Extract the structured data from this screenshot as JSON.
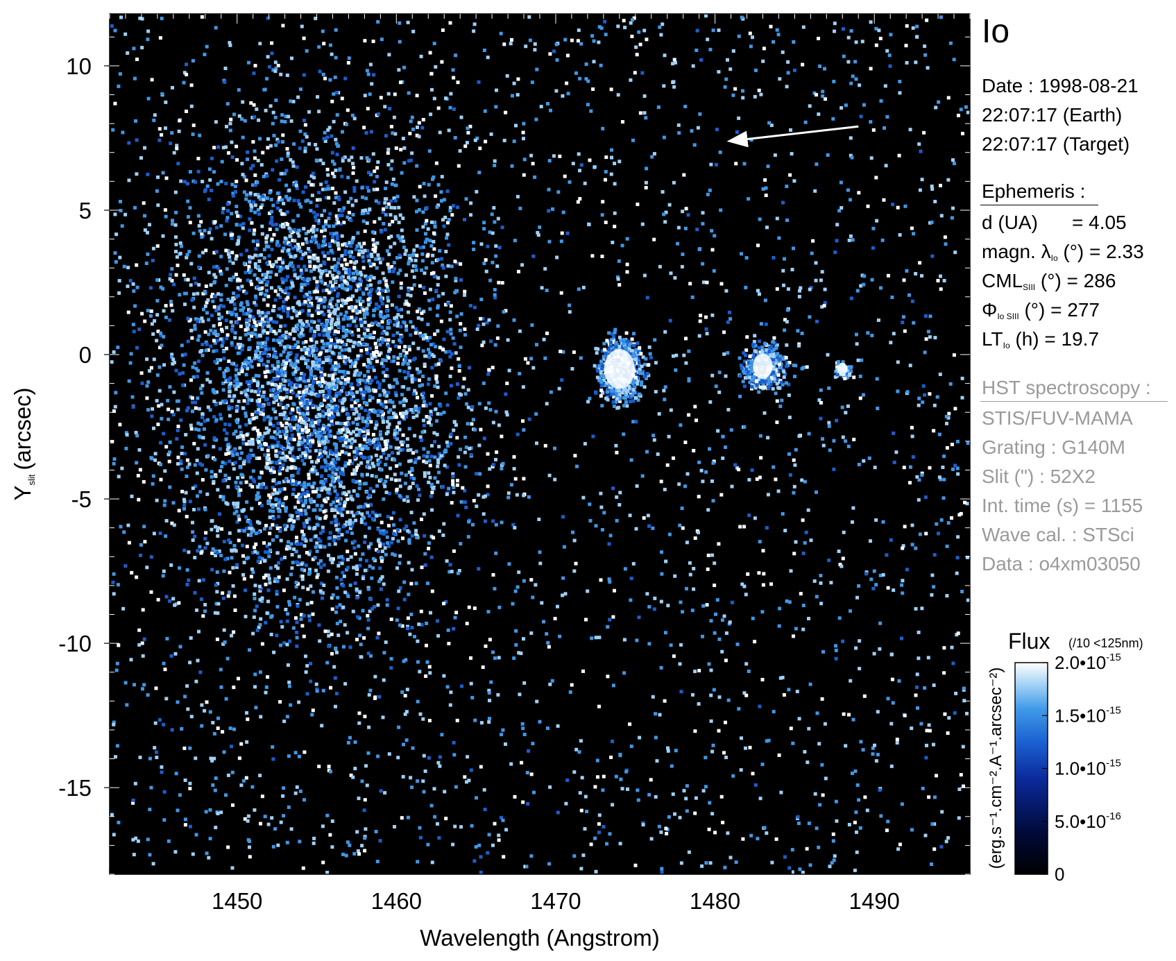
{
  "chart_data": {
    "type": "heatmap",
    "title": "Io",
    "xlabel": "Wavelength (Angstrom)",
    "ylabel_main": "Y",
    "ylabel_sub": "slit",
    "ylabel_unit": "(arcsec)",
    "xlim": [
      1442,
      1496
    ],
    "ylim": [
      -18,
      11.8
    ],
    "x_ticks": [
      1450,
      1460,
      1470,
      1480,
      1490
    ],
    "y_ticks": [
      10,
      5,
      0,
      -5,
      -10,
      -15
    ],
    "background_color": "#000000",
    "colormap": [
      "#000000",
      "#000a2e",
      "#0b2a8c",
      "#1a5fd0",
      "#3f97e6",
      "#9fd0f5",
      "#ffffff"
    ],
    "emission_features": [
      {
        "x": 1455,
        "y": -1,
        "kind": "broad diffuse emission"
      },
      {
        "x": 1474,
        "y": -0.5,
        "kind": "bright compact emission"
      },
      {
        "x": 1483,
        "y": -0.4,
        "kind": "compact emission"
      },
      {
        "x": 1488,
        "y": -0.5,
        "kind": "weak compact emission"
      }
    ],
    "arrow": {
      "from": [
        1489,
        7.9
      ],
      "to": [
        1481,
        7.4
      ]
    },
    "colorbar": {
      "label": "Flux",
      "label_note": "(/10 <125nm)",
      "unit": "(erg.s⁻¹.cm⁻².A⁻¹.arcsec⁻²)",
      "range": [
        0,
        2e-15
      ],
      "ticks": [
        {
          "value": 2e-15,
          "mantissa": "2.0•10",
          "exponent": "-15"
        },
        {
          "value": 1.5e-15,
          "mantissa": "1.5•10",
          "exponent": "-15"
        },
        {
          "value": 1e-15,
          "mantissa": "1.0•10",
          "exponent": "-15"
        },
        {
          "value": 5e-16,
          "mantissa": "5.0•10",
          "exponent": "-16"
        },
        {
          "value": 0,
          "mantissa": "0",
          "exponent": ""
        }
      ]
    }
  },
  "info": {
    "target": "Io",
    "date_line": "Date : 1998-08-21",
    "earth_time": "22:07:17 (Earth)",
    "target_time": "22:07:17 (Target)",
    "ephemeris_header": "Ephemeris :",
    "d_label": "d (UA)",
    "d_value": "= 4.05",
    "magn_label": "magn. λ",
    "magn_sub": "Io",
    "magn_value": "(°)  = 2.33",
    "cml_label": "CML",
    "cml_sub": "SIII",
    "cml_value": "(°) = 286",
    "phi_label": "Φ",
    "phi_sub": "Io SIII",
    "phi_value": "(°) = 277",
    "lt_label": "LT",
    "lt_sub": "Io",
    "lt_value": "(h) = 19.7",
    "hst_header": "HST spectroscopy :",
    "instrument": "STIS/FUV-MAMA",
    "grating": "Grating : G140M",
    "slit": "Slit (\") : 52X2",
    "int_time": "Int. time (s) = 1155",
    "wave_cal": "Wave cal. : STSci",
    "data_id": "Data : o4xm03050"
  }
}
